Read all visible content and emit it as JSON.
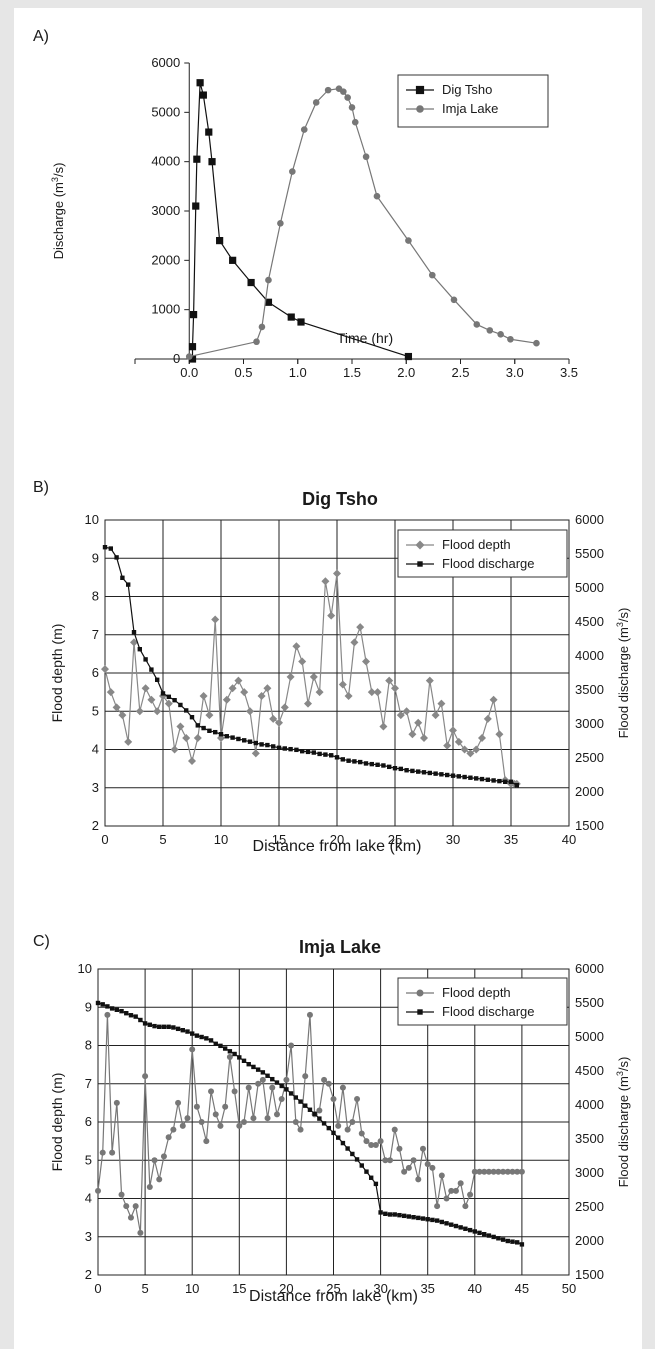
{
  "figure": {
    "panel_labels": [
      "A)",
      "B)",
      "C)"
    ]
  },
  "chart_data": [
    {
      "type": "line",
      "title": "",
      "xlabel": "Time (hr)",
      "ylabel": "Discharge (m3/s)",
      "xlim": [
        -0.5,
        3.5
      ],
      "ylim": [
        0,
        6000
      ],
      "xticks": [
        "0.0",
        "0.5",
        "1.0",
        "1.5",
        "2.0",
        "2.5",
        "3.0",
        "3.5"
      ],
      "yticks": [
        "0",
        "1000",
        "2000",
        "3000",
        "4000",
        "5000",
        "6000"
      ],
      "grid": false,
      "legend": "top-right",
      "series": [
        {
          "name": "Dig Tsho",
          "marker": "square",
          "x": [
            0.03,
            0.03,
            0.04,
            0.06,
            0.07,
            0.1,
            0.13,
            0.18,
            0.21,
            0.28,
            0.4,
            0.57,
            0.73,
            0.94,
            1.03,
            2.02
          ],
          "y": [
            0,
            250,
            900,
            3100,
            4050,
            5600,
            5350,
            4600,
            4000,
            2400,
            2000,
            1550,
            1150,
            850,
            750,
            50
          ]
        },
        {
          "name": "Imja Lake",
          "marker": "circle",
          "x": [
            0.0,
            0.62,
            0.67,
            0.73,
            0.84,
            0.95,
            1.06,
            1.17,
            1.28,
            1.38,
            1.42,
            1.46,
            1.5,
            1.53,
            1.63,
            1.73,
            2.02,
            2.24,
            2.44,
            2.65,
            2.77,
            2.87,
            2.96,
            3.2
          ],
          "y": [
            50,
            350,
            650,
            1600,
            2750,
            3800,
            4650,
            5200,
            5450,
            5480,
            5420,
            5300,
            5100,
            4800,
            4100,
            3300,
            2400,
            1700,
            1200,
            700,
            580,
            500,
            400,
            320
          ]
        }
      ]
    },
    {
      "type": "line",
      "title": "Dig Tsho",
      "xlabel": "Distance from lake (km)",
      "ylabel": "Flood depth (m)",
      "y2label": "Flood discharge (m3/s)",
      "xlim": [
        0,
        40
      ],
      "ylim": [
        2,
        10
      ],
      "y2lim": [
        1500,
        6000
      ],
      "xticks": [
        "0",
        "5",
        "10",
        "15",
        "20",
        "25",
        "30",
        "35",
        "40"
      ],
      "yticks": [
        "2",
        "3",
        "4",
        "5",
        "6",
        "7",
        "8",
        "9",
        "10"
      ],
      "y2ticks": [
        "1500",
        "2000",
        "2500",
        "3000",
        "3500",
        "4000",
        "4500",
        "5000",
        "5500",
        "6000"
      ],
      "grid": true,
      "legend": "top-right",
      "series": [
        {
          "name": "Flood depth",
          "axis": "left",
          "marker": "diamond",
          "x": [
            0,
            0.5,
            1,
            1.5,
            2,
            2.5,
            3,
            3.5,
            4,
            4.5,
            5,
            5.5,
            6,
            6.5,
            7,
            7.5,
            8,
            8.5,
            9,
            9.5,
            10,
            10.5,
            11,
            11.5,
            12,
            12.5,
            13,
            13.5,
            14,
            14.5,
            15,
            15.5,
            16,
            16.5,
            17,
            17.5,
            18,
            18.5,
            19,
            19.5,
            20,
            20.5,
            21,
            21.5,
            22,
            22.5,
            23,
            23.5,
            24,
            24.5,
            25,
            25.5,
            26,
            26.5,
            27,
            27.5,
            28,
            28.5,
            29,
            29.5,
            30,
            30.5,
            31,
            31.5,
            32,
            32.5,
            33,
            33.5,
            34,
            34.5,
            35,
            35.3,
            35.5
          ],
          "y": [
            6.1,
            5.5,
            5.1,
            4.9,
            4.2,
            6.8,
            5.0,
            5.6,
            5.3,
            5.0,
            5.4,
            5.2,
            4.0,
            4.6,
            4.3,
            3.7,
            4.3,
            5.4,
            4.9,
            7.4,
            4.3,
            5.3,
            5.6,
            5.8,
            5.5,
            5.0,
            3.9,
            5.4,
            5.6,
            4.8,
            4.7,
            5.1,
            5.9,
            6.7,
            6.3,
            5.2,
            5.9,
            5.5,
            8.4,
            7.5,
            8.6,
            5.7,
            5.4,
            6.8,
            7.2,
            6.3,
            5.5,
            5.5,
            4.6,
            5.8,
            5.6,
            4.9,
            5.0,
            4.4,
            4.7,
            4.3,
            5.8,
            4.9,
            5.2,
            4.1,
            4.5,
            4.2,
            4.0,
            3.9,
            4.0,
            4.3,
            4.8,
            5.3,
            4.4,
            3.2,
            3.1,
            3.1,
            3.1
          ]
        },
        {
          "name": "Flood discharge",
          "axis": "right",
          "marker": "square",
          "x": [
            0,
            0.5,
            1,
            1.5,
            2,
            2.5,
            3,
            3.5,
            4,
            4.5,
            5,
            5.5,
            6,
            6.5,
            7,
            7.5,
            8,
            8.5,
            9,
            9.5,
            10,
            10.5,
            11,
            11.5,
            12,
            12.5,
            13,
            13.5,
            14,
            14.5,
            15,
            15.5,
            16,
            16.5,
            17,
            17.5,
            18,
            18.5,
            19,
            19.5,
            20,
            20.5,
            21,
            21.5,
            22,
            22.5,
            23,
            23.5,
            24,
            24.5,
            25,
            25.5,
            26,
            26.5,
            27,
            27.5,
            28,
            28.5,
            29,
            29.5,
            30,
            30.5,
            31,
            31.5,
            32,
            32.5,
            33,
            33.5,
            34,
            34.5,
            35,
            35.5
          ],
          "y": [
            5600,
            5580,
            5450,
            5150,
            5050,
            4350,
            4100,
            3950,
            3800,
            3650,
            3450,
            3400,
            3350,
            3280,
            3200,
            3100,
            2980,
            2940,
            2900,
            2880,
            2850,
            2820,
            2800,
            2780,
            2760,
            2740,
            2720,
            2700,
            2690,
            2670,
            2650,
            2640,
            2630,
            2620,
            2600,
            2590,
            2580,
            2560,
            2550,
            2540,
            2510,
            2480,
            2460,
            2450,
            2440,
            2420,
            2410,
            2400,
            2390,
            2370,
            2350,
            2340,
            2320,
            2310,
            2300,
            2290,
            2280,
            2270,
            2260,
            2250,
            2240,
            2230,
            2220,
            2210,
            2200,
            2190,
            2180,
            2170,
            2160,
            2150,
            2150,
            2100
          ]
        }
      ]
    },
    {
      "type": "line",
      "title": "Imja Lake",
      "xlabel": "Distance from lake (km)",
      "ylabel": "Flood depth (m)",
      "y2label": "Flood discharge (m3/s)",
      "xlim": [
        0,
        50
      ],
      "ylim": [
        2,
        10
      ],
      "y2lim": [
        1500,
        6000
      ],
      "xticks": [
        "0",
        "5",
        "10",
        "15",
        "20",
        "25",
        "30",
        "35",
        "40",
        "45",
        "50"
      ],
      "yticks": [
        "2",
        "3",
        "4",
        "5",
        "6",
        "7",
        "8",
        "9",
        "10"
      ],
      "y2ticks": [
        "1500",
        "2000",
        "2500",
        "3000",
        "3500",
        "4000",
        "4500",
        "5000",
        "5500",
        "6000"
      ],
      "grid": true,
      "legend": "top-right",
      "series": [
        {
          "name": "Flood depth",
          "axis": "left",
          "marker": "circle",
          "x": [
            0,
            0.5,
            1,
            1.5,
            2,
            2.5,
            3,
            3.5,
            4,
            4.5,
            5,
            5.5,
            6,
            6.5,
            7,
            7.5,
            8,
            8.5,
            9,
            9.5,
            10,
            10.5,
            11,
            11.5,
            12,
            12.5,
            13,
            13.5,
            14,
            14.5,
            15,
            15.5,
            16,
            16.5,
            17,
            17.5,
            18,
            18.5,
            19,
            19.5,
            20,
            20.5,
            21,
            21.5,
            22,
            22.5,
            23,
            23.5,
            24,
            24.5,
            25,
            25.5,
            26,
            26.5,
            27,
            27.5,
            28,
            28.5,
            29,
            29.5,
            30,
            30.5,
            31,
            31.5,
            32,
            32.5,
            33,
            33.5,
            34,
            34.5,
            35,
            35.5,
            36,
            36.5,
            37,
            37.5,
            38,
            38.5,
            39,
            39.5,
            40,
            40.5,
            41,
            41.5,
            42,
            42.5,
            43,
            43.5,
            44,
            44.5,
            45
          ],
          "y": [
            4.2,
            5.2,
            8.8,
            5.2,
            6.5,
            4.1,
            3.8,
            3.5,
            3.8,
            3.1,
            7.2,
            4.3,
            5.0,
            4.5,
            5.1,
            5.6,
            5.8,
            6.5,
            5.9,
            6.1,
            7.9,
            6.4,
            6.0,
            5.5,
            6.8,
            6.2,
            5.9,
            6.4,
            7.7,
            6.8,
            5.9,
            6.0,
            6.9,
            6.1,
            7.0,
            7.1,
            6.1,
            6.9,
            6.2,
            6.6,
            7.1,
            8.0,
            6.0,
            5.8,
            7.2,
            8.8,
            6.2,
            6.3,
            7.1,
            7.0,
            6.6,
            5.9,
            6.9,
            5.8,
            6.0,
            6.6,
            5.7,
            5.5,
            5.4,
            5.4,
            5.5,
            5.0,
            5.0,
            5.8,
            5.3,
            4.7,
            4.8,
            5.0,
            4.5,
            5.3,
            4.9,
            4.8,
            3.8,
            4.6,
            4.0,
            4.2,
            4.2,
            4.4,
            3.8,
            4.1,
            4.7,
            4.7,
            4.7,
            4.7,
            4.7,
            4.7,
            4.7,
            4.7,
            4.7,
            4.7,
            4.7
          ],
          "x_extra_note": ""
        },
        {
          "name": "Flood discharge",
          "axis": "right",
          "marker": "square",
          "x": [
            0,
            0.5,
            1,
            1.5,
            2,
            2.5,
            3,
            3.5,
            4,
            4.5,
            5,
            5.5,
            6,
            6.5,
            7,
            7.5,
            8,
            8.5,
            9,
            9.5,
            10,
            10.5,
            11,
            11.5,
            12,
            12.5,
            13,
            13.5,
            14,
            14.5,
            15,
            15.5,
            16,
            16.5,
            17,
            17.5,
            18,
            18.5,
            19,
            19.5,
            20,
            20.5,
            21,
            21.5,
            22,
            22.5,
            23,
            23.5,
            24,
            24.5,
            25,
            25.5,
            26,
            26.5,
            27,
            27.5,
            28,
            28.5,
            29,
            29.5,
            30,
            30.5,
            31,
            31.5,
            32,
            32.5,
            33,
            33.5,
            34,
            34.5,
            35,
            35.5,
            36,
            36.5,
            37,
            37.5,
            38,
            38.5,
            39,
            39.5,
            40,
            40.5,
            41,
            41.5,
            42,
            42.5,
            43,
            43.5,
            44,
            44.5,
            45
          ],
          "y": [
            5500,
            5480,
            5450,
            5420,
            5400,
            5380,
            5350,
            5320,
            5300,
            5250,
            5200,
            5180,
            5160,
            5150,
            5150,
            5150,
            5140,
            5120,
            5100,
            5080,
            5050,
            5020,
            5000,
            4980,
            4950,
            4900,
            4870,
            4830,
            4790,
            4750,
            4700,
            4650,
            4600,
            4560,
            4520,
            4480,
            4430,
            4380,
            4330,
            4280,
            4230,
            4170,
            4110,
            4050,
            3990,
            3930,
            3870,
            3800,
            3730,
            3660,
            3590,
            3520,
            3440,
            3360,
            3280,
            3200,
            3110,
            3020,
            2930,
            2840,
            2420,
            2400,
            2390,
            2390,
            2380,
            2370,
            2360,
            2350,
            2340,
            2330,
            2320,
            2310,
            2300,
            2280,
            2260,
            2240,
            2220,
            2200,
            2180,
            2160,
            2140,
            2120,
            2100,
            2080,
            2060,
            2040,
            2020,
            2000,
            1990,
            1980,
            1950
          ]
        }
      ]
    }
  ]
}
